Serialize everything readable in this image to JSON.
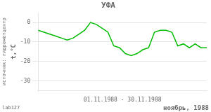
{
  "chart_data": {
    "type": "line",
    "title": "УФА",
    "ylabel": "t,°C",
    "xlabel": "01.11.1988 - 30.11.1988",
    "annotations": [
      "lab127",
      "ноябрь, 1988",
      "источник: гидрометцентр"
    ],
    "x": [
      1,
      2,
      3,
      4,
      5,
      6,
      7,
      8,
      9,
      10,
      11,
      12,
      13,
      14,
      15,
      16,
      17,
      18,
      19,
      20,
      21,
      22,
      23,
      24,
      25,
      26,
      27,
      28,
      29,
      30
    ],
    "values": [
      -4,
      -5,
      -6,
      -7,
      -8,
      -9,
      -8,
      -6,
      -4,
      0,
      -1,
      -3,
      -5,
      -12,
      -13,
      -16,
      -17,
      -16,
      -14,
      -13,
      -5,
      -4,
      -4,
      -5,
      -12,
      -11,
      -13,
      -11,
      -13,
      -13
    ],
    "color": "#00bb00",
    "xlim": [
      1,
      30
    ],
    "ylim": [
      -35,
      5
    ],
    "yticks": [
      0,
      -10,
      -20,
      -30
    ],
    "grid": true,
    "tick_labels": "y"
  }
}
